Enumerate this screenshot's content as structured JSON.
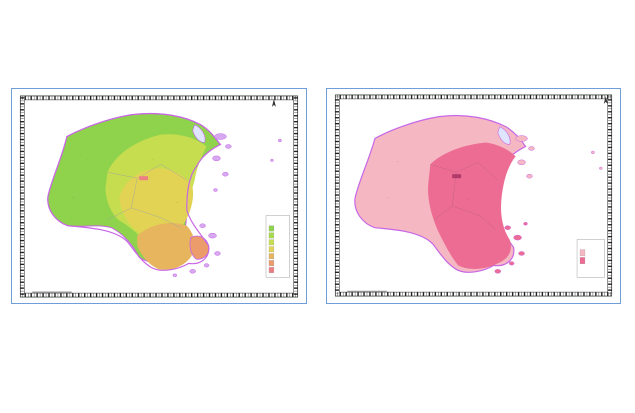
{
  "panels": [
    {
      "id": "left",
      "map_type": "graduated-color",
      "colors": [
        "#8fd34c",
        "#a8da4e",
        "#c9dd50",
        "#e2d355",
        "#e6b55e",
        "#eb9c6a",
        "#ec7f86"
      ],
      "legend": {
        "title": "",
        "items": []
      }
    },
    {
      "id": "right",
      "map_type": "two-class",
      "colors": [
        "#f5b8c3",
        "#ec6c93"
      ],
      "legend": {
        "title": "",
        "items": []
      }
    }
  ],
  "colors": {
    "frame_border": "#6f9ed8",
    "coast_outline": "#c866e6",
    "island_fill": "#d5a8ef",
    "bay_fill": "#dfe4ff"
  }
}
